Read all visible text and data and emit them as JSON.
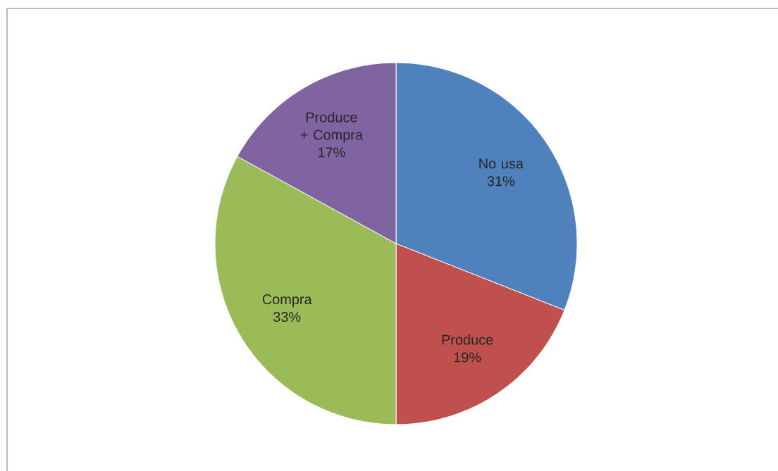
{
  "chart_data": {
    "type": "pie",
    "categories": [
      "No usa",
      "Produce",
      "Compra",
      "Produce + Compra"
    ],
    "values": [
      31,
      19,
      33,
      17
    ],
    "value_labels": [
      "31%",
      "19%",
      "33%",
      "17%"
    ],
    "colors": [
      "#4f81bd",
      "#c0504d",
      "#9bbb59",
      "#8064a2"
    ]
  }
}
